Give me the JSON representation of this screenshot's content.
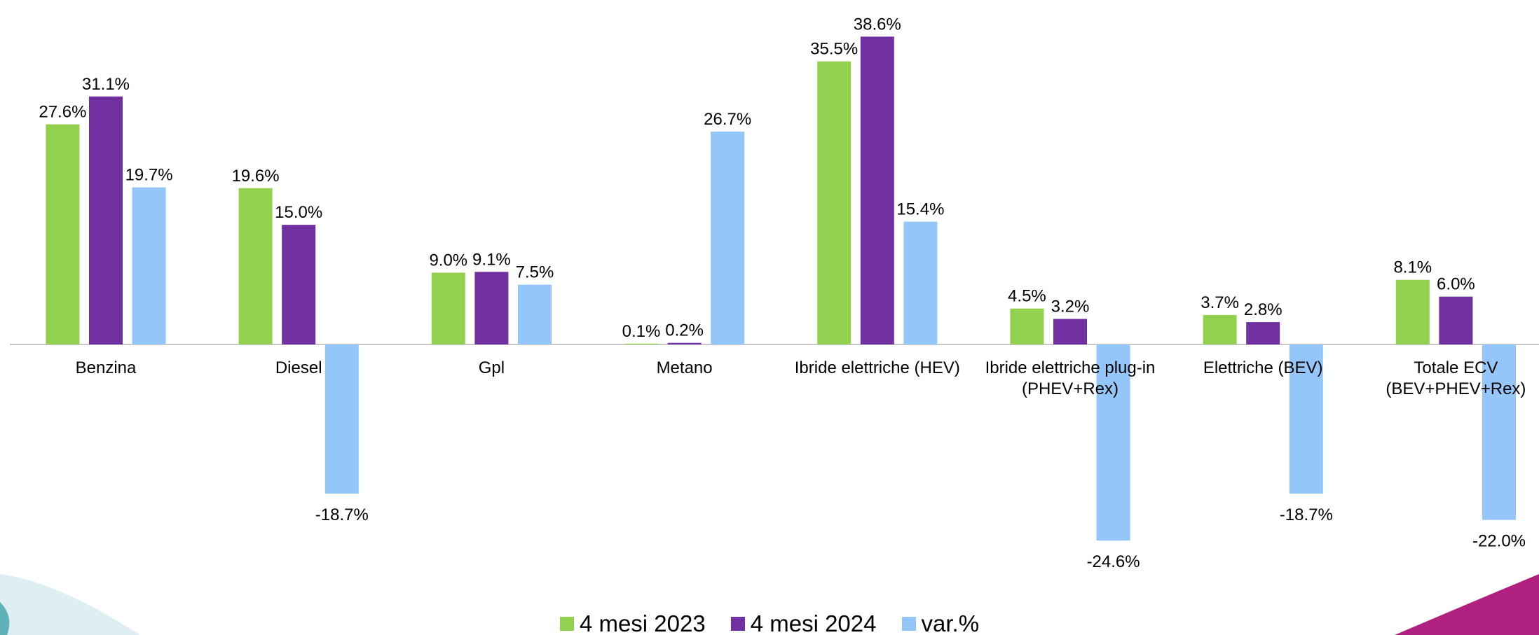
{
  "chart_data": {
    "type": "bar",
    "categories": [
      "Benzina",
      "Diesel",
      "Gpl",
      "Metano",
      "Ibride elettriche (HEV)",
      "Ibride elettriche plug-in\n(PHEV+Rex)",
      "Elettriche (BEV)",
      "Totale ECV\n(BEV+PHEV+Rex)"
    ],
    "series": [
      {
        "name": "4 mesi 2023",
        "color": "#92d050",
        "values": [
          27.6,
          19.6,
          9.0,
          0.1,
          35.5,
          4.5,
          3.7,
          8.1
        ],
        "value_labels": [
          "27.6%",
          "19.6%",
          "9.0%",
          "0.1%",
          "35.5%",
          "4.5%",
          "3.7%",
          "8.1%"
        ]
      },
      {
        "name": "4 mesi 2024",
        "color": "#7030a0",
        "values": [
          31.1,
          15.0,
          9.1,
          0.2,
          38.6,
          3.2,
          2.8,
          6.0
        ],
        "value_labels": [
          "31.1%",
          "15.0%",
          "9.1%",
          "0.2%",
          "38.6%",
          "3.2%",
          "2.8%",
          "6.0%"
        ]
      },
      {
        "name": "var.%",
        "color": "#95c6f9",
        "values": [
          19.7,
          -18.7,
          7.5,
          26.7,
          15.4,
          -24.6,
          -18.7,
          -22.0
        ],
        "value_labels": [
          "19.7%",
          "-18.7%",
          "7.5%",
          "26.7%",
          "15.4%",
          "-24.6%",
          "-18.7%",
          "-22.0%"
        ]
      }
    ]
  }
}
